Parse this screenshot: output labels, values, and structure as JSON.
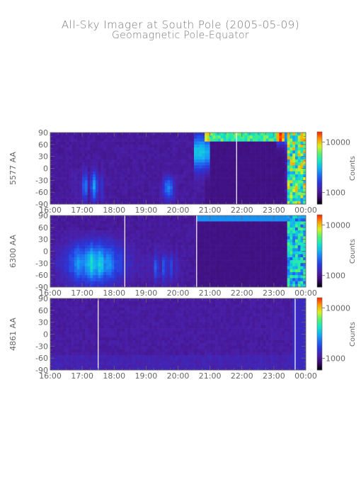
{
  "title": "All-Sky Imager at South Pole (2005-05-09)",
  "subtitle": "Geomagnetic Pole-Equator",
  "chart_data": [
    {
      "type": "heatmap",
      "ylabel": "5577 AA",
      "x_ticks": [
        "16:00",
        "17:00",
        "18:00",
        "19:00",
        "20:00",
        "21:00",
        "22:00",
        "23:00",
        "00:00"
      ],
      "y_ticks": [
        90,
        60,
        30,
        0,
        -30,
        -60,
        -90
      ],
      "ylim": [
        -90,
        90
      ],
      "xlim": [
        "16:00",
        "00:00"
      ],
      "colorbar_label": "Counts",
      "colorbar_ticks": [
        10000,
        1000
      ],
      "colorbar_scale": "log",
      "gaps": [
        "21:50"
      ]
    },
    {
      "type": "heatmap",
      "ylabel": "6300 AA",
      "x_ticks": [
        "16:00",
        "17:00",
        "18:00",
        "19:00",
        "20:00",
        "21:00",
        "22:00",
        "23:00",
        "00:00"
      ],
      "y_ticks": [
        90,
        60,
        30,
        0,
        -30,
        -60,
        -90
      ],
      "ylim": [
        -90,
        90
      ],
      "xlim": [
        "16:00",
        "00:00"
      ],
      "colorbar_label": "Counts",
      "colorbar_ticks": [
        10000,
        1000
      ],
      "colorbar_scale": "log",
      "gaps": [
        "18:20",
        "20:35"
      ]
    },
    {
      "type": "heatmap",
      "ylabel": "4861 AA",
      "x_ticks": [
        "16:00",
        "17:00",
        "18:00",
        "19:00",
        "20:00",
        "21:00",
        "22:00",
        "23:00",
        "00:00"
      ],
      "y_ticks": [
        90,
        60,
        30,
        0,
        -30,
        -60,
        -90
      ],
      "ylim": [
        -90,
        90
      ],
      "xlim": [
        "16:00",
        "00:00"
      ],
      "colorbar_label": "Counts",
      "colorbar_ticks": [
        10000,
        1000
      ],
      "colorbar_scale": "log",
      "gaps": [
        "17:30",
        "23:40"
      ]
    }
  ],
  "colors": {
    "axis": "#666666",
    "colormap": [
      "#000000",
      "#3b0a6e",
      "#4a1ea6",
      "#2a36d8",
      "#1f6cf2",
      "#12b4f0",
      "#17e6c0",
      "#58f070",
      "#d8f020",
      "#ff9a00",
      "#ff2000"
    ]
  }
}
